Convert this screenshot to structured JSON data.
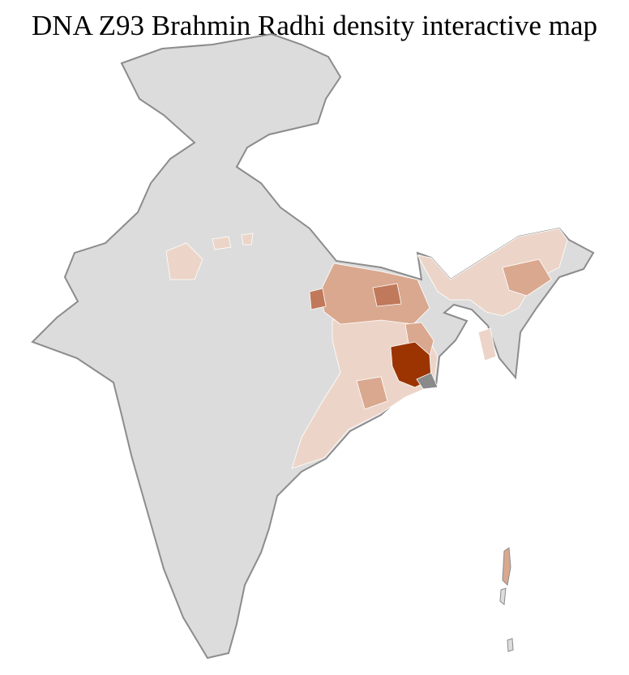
{
  "title": "DNA Z93 Brahmin Radhi density interactive map",
  "map": {
    "country": "India",
    "colors": {
      "no_data": "#dcdcdc",
      "border": "#8c8c8c",
      "district_line": "#ffffff",
      "low": "#ecd5c8",
      "medium": "#d9a88f",
      "high": "#c0795a",
      "highest": "#9b3400",
      "excluded": "#8a8a8a"
    }
  }
}
